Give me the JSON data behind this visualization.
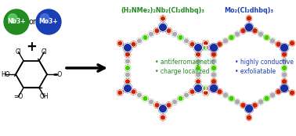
{
  "bg_color": "#ffffff",
  "nb_color": "#228B22",
  "mo_color": "#1a3fb5",
  "nb_label": "Nb3+",
  "mo_label": "Mo3+",
  "atom_blue": "#1a2f9e",
  "atom_red": "#cc2200",
  "atom_green": "#44cc00",
  "atom_gray": "#aaaaaa",
  "bond_color": "#888888",
  "nb_formula": "(H₂NMe₂)₂Nb₂(Cl₂dhbq)₃",
  "mo_formula": "Mo₂(Cl₂dhbq)₃",
  "nb_props": [
    "antiferromagnetic",
    "charge localized"
  ],
  "mo_props": [
    "highly conductive",
    "exfoliatable"
  ],
  "nb_text_color": "#228B22",
  "mo_text_color": "#1a3fb5",
  "fig_w": 3.78,
  "fig_h": 1.74,
  "dpi": 100
}
